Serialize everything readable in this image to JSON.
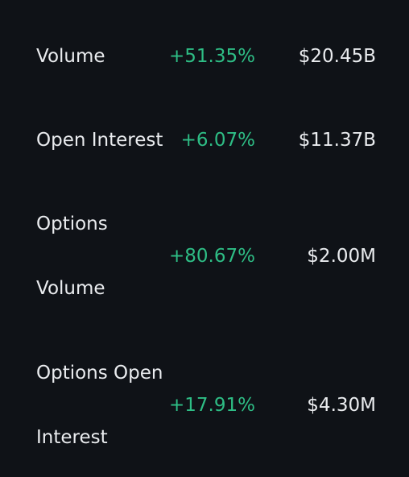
{
  "metrics": [
    {
      "label": "Volume",
      "change": "+51.35%",
      "value": "$20.45B"
    },
    {
      "label": "Open Interest",
      "change": "+6.07%",
      "value": "$11.37B"
    },
    {
      "label": "Options\nVolume",
      "change": "+80.67%",
      "value": "$2.00M"
    },
    {
      "label": "Options Open\nInterest",
      "change": "+17.91%",
      "value": "$4.30M"
    }
  ],
  "colors": {
    "background": "#0f1217",
    "text": "#eaecef",
    "positive": "#2ebd85"
  }
}
